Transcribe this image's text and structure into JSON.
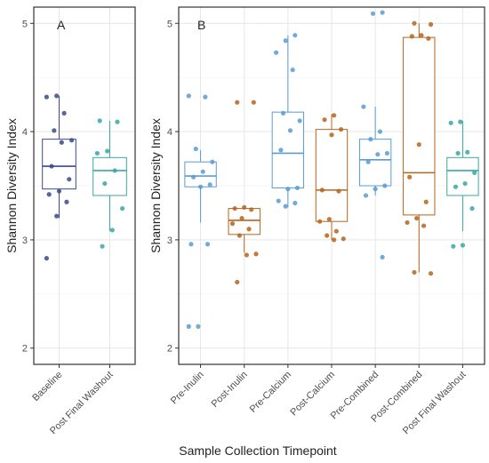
{
  "chart_data": [
    {
      "type": "box",
      "panel_label": "A",
      "ylabel": "Shannon Diversity Index",
      "ylim": [
        1.85,
        5.15
      ],
      "yticks": [
        2,
        3,
        4,
        5
      ],
      "grid": true,
      "colors": {
        "dark_blue": "#3a4a8c",
        "teal": "#3aa8a3"
      },
      "categories": [
        "Baseline",
        "Post Final Washout"
      ],
      "boxes": [
        {
          "category": "Baseline",
          "color": "#3a4a8c",
          "q1": 3.47,
          "median": 3.68,
          "q3": 3.93,
          "whisker_low": 3.2,
          "whisker_high": 4.33,
          "points": [
            2.83,
            3.22,
            3.35,
            3.42,
            3.45,
            3.56,
            3.68,
            3.9,
            3.92,
            4.01,
            4.17,
            4.32,
            4.33
          ]
        },
        {
          "category": "Post Final Washout",
          "color": "#3aa8a3",
          "q1": 3.41,
          "median": 3.64,
          "q3": 3.76,
          "whisker_low": 3.08,
          "whisker_high": 4.1,
          "points": [
            2.94,
            3.09,
            3.29,
            3.52,
            3.64,
            3.8,
            3.82,
            4.09,
            4.1
          ]
        }
      ]
    },
    {
      "type": "box",
      "panel_label": "B",
      "ylabel": "Shannon Diversity Index",
      "xlabel": "Sample Collection Timepoint",
      "ylim": [
        1.85,
        5.15
      ],
      "yticks": [
        2,
        3,
        4,
        5
      ],
      "grid": true,
      "colors": {
        "light_blue": "#5b9bd5",
        "brown": "#b5651d",
        "teal": "#3aa8a3"
      },
      "categories": [
        "Pre-Inulin",
        "Post-Inulin",
        "Pre-Calcium",
        "Post-Calcium",
        "Pre-Combined",
        "Post-Combined",
        "Post Final Washout"
      ],
      "boxes": [
        {
          "category": "Pre-Inulin",
          "color": "#5b9bd5",
          "q1": 3.49,
          "median": 3.59,
          "q3": 3.72,
          "whisker_low": 3.16,
          "whisker_high": 3.83,
          "points": [
            2.2,
            2.2,
            2.96,
            2.96,
            3.49,
            3.51,
            3.58,
            3.63,
            3.72,
            3.84,
            4.32,
            4.33
          ]
        },
        {
          "category": "Post-Inulin",
          "color": "#b5651d",
          "q1": 3.05,
          "median": 3.18,
          "q3": 3.29,
          "whisker_low": 2.88,
          "whisker_high": 3.3,
          "points": [
            2.61,
            2.86,
            2.87,
            3.04,
            3.1,
            3.15,
            3.2,
            3.28,
            3.29,
            3.3,
            4.27,
            4.27
          ]
        },
        {
          "category": "Pre-Calcium",
          "color": "#5b9bd5",
          "q1": 3.48,
          "median": 3.8,
          "q3": 4.18,
          "whisker_low": 3.3,
          "whisker_high": 4.89,
          "points": [
            3.31,
            3.34,
            3.36,
            3.47,
            3.48,
            3.83,
            4.01,
            4.1,
            4.17,
            4.57,
            4.73,
            4.84,
            4.89
          ]
        },
        {
          "category": "Post-Calcium",
          "color": "#b5651d",
          "q1": 3.17,
          "median": 3.46,
          "q3": 4.02,
          "whisker_low": 3.0,
          "whisker_high": 4.16,
          "points": [
            3.0,
            3.01,
            3.04,
            3.08,
            3.17,
            3.19,
            3.45,
            3.46,
            3.97,
            4.02,
            4.11,
            4.15
          ]
        },
        {
          "category": "Pre-Combined",
          "color": "#5b9bd5",
          "q1": 3.5,
          "median": 3.74,
          "q3": 3.93,
          "whisker_low": 3.41,
          "whisker_high": 4.23,
          "points": [
            2.84,
            3.41,
            3.47,
            3.5,
            3.72,
            3.79,
            3.8,
            3.93,
            4.0,
            4.23,
            5.09,
            5.1
          ]
        },
        {
          "category": "Post-Combined",
          "color": "#b5651d",
          "q1": 3.23,
          "median": 3.62,
          "q3": 4.87,
          "whisker_low": 2.7,
          "whisker_high": 5.0,
          "points": [
            2.69,
            2.7,
            3.13,
            3.16,
            3.2,
            3.35,
            3.58,
            3.88,
            4.86,
            4.88,
            4.89,
            4.99,
            5.0
          ]
        },
        {
          "category": "Post Final Washout",
          "color": "#3aa8a3",
          "q1": 3.41,
          "median": 3.64,
          "q3": 3.76,
          "whisker_low": 3.08,
          "whisker_high": 4.1,
          "points": [
            2.94,
            2.95,
            3.29,
            3.49,
            3.52,
            3.62,
            3.8,
            3.81,
            4.08,
            4.09
          ]
        }
      ]
    }
  ]
}
